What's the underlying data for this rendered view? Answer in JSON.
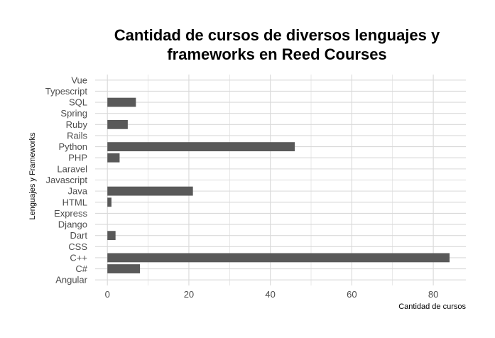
{
  "chart_data": {
    "type": "bar",
    "orientation": "horizontal",
    "title": "Cantidad de cursos de diversos lenguajes y\nframeworks en Reed Courses",
    "xlabel": "Cantidad de cursos",
    "ylabel": "Lenguajes y Frameworks",
    "categories": [
      "Angular",
      "C#",
      "C++",
      "CSS",
      "Dart",
      "Django",
      "Express",
      "HTML",
      "Java",
      "Javascript",
      "Laravel",
      "PHP",
      "Python",
      "Rails",
      "Ruby",
      "Spring",
      "SQL",
      "Typescript",
      "Vue"
    ],
    "values": [
      0,
      8,
      84,
      0,
      2,
      0,
      0,
      1,
      21,
      0,
      0,
      3,
      46,
      0,
      5,
      0,
      7,
      0,
      0
    ],
    "xlim": [
      -3,
      88
    ],
    "xticks": [
      0,
      20,
      40,
      60,
      80
    ],
    "grid": true,
    "bar_color": "#595959",
    "grid_color": "#d9d9d9"
  }
}
